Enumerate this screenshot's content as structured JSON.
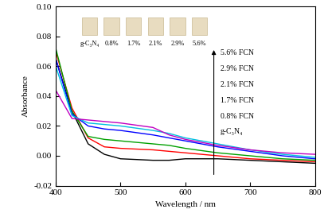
{
  "chart_data": {
    "type": "line",
    "x_label": "Wavelength / nm",
    "y_label": "Absorbance",
    "x": [
      400,
      425,
      450,
      475,
      500,
      550,
      575,
      600,
      650,
      700,
      750,
      800
    ],
    "series": [
      {
        "name": "g-C₃N₄",
        "color": "#000000",
        "values": [
          0.065,
          0.03,
          0.008,
          0.001,
          -0.002,
          -0.003,
          -0.003,
          -0.002,
          -0.002,
          -0.003,
          -0.004,
          -0.005
        ]
      },
      {
        "name": "0.8% FCN",
        "color": "#ff0000",
        "values": [
          0.07,
          0.032,
          0.012,
          0.006,
          0.005,
          0.004,
          0.003,
          0.002,
          0.0,
          -0.002,
          -0.003,
          -0.004
        ]
      },
      {
        "name": "1.7% FCN",
        "color": "#00a000",
        "values": [
          0.072,
          0.03,
          0.013,
          0.011,
          0.01,
          0.008,
          0.007,
          0.005,
          0.002,
          0.0,
          -0.002,
          -0.003
        ]
      },
      {
        "name": "2.1% FCN",
        "color": "#0000ff",
        "values": [
          0.065,
          0.028,
          0.02,
          0.018,
          0.017,
          0.014,
          0.012,
          0.01,
          0.006,
          0.003,
          0.0,
          -0.002
        ]
      },
      {
        "name": "2.9% FCN",
        "color": "#00c0e0",
        "values": [
          0.06,
          0.027,
          0.022,
          0.021,
          0.02,
          0.017,
          0.015,
          0.012,
          0.008,
          0.004,
          0.001,
          -0.001
        ]
      },
      {
        "name": "5.6% FCN",
        "color": "#c000c0",
        "values": [
          0.044,
          0.025,
          0.024,
          0.023,
          0.022,
          0.019,
          0.014,
          0.011,
          0.007,
          0.004,
          0.002,
          0.001
        ]
      }
    ],
    "annotations": [
      "g-C₃N₄",
      "0.8%",
      "1.7%",
      "2.1%",
      "2.9%",
      "5.6%"
    ],
    "xlim": [
      400,
      800
    ],
    "xticks": [
      400,
      500,
      600,
      700,
      800
    ],
    "ylim": [
      -0.02,
      0.1
    ],
    "yticks": [
      {
        "value": -0.02,
        "label": "-0.02"
      },
      {
        "value": 0.0,
        "label": "0.00"
      },
      {
        "value": 0.02,
        "label": "0.02"
      },
      {
        "value": 0.04,
        "label": "0.04"
      },
      {
        "value": 0.06,
        "label": "0.06"
      },
      {
        "value": 0.08,
        "label": "0.08"
      },
      {
        "value": 0.1,
        "label": "0.10"
      }
    ],
    "grid": false
  }
}
